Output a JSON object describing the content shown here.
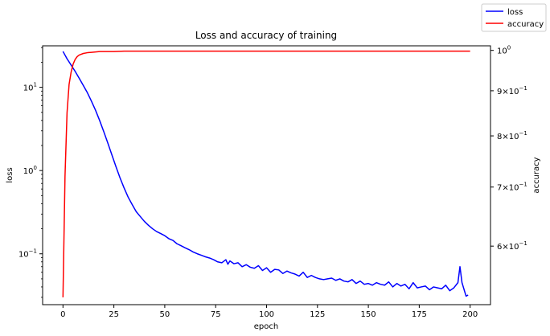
{
  "chart_data": {
    "type": "line",
    "title": "Loss and accuracy of training",
    "xlabel": "epoch",
    "ylabel_left": "loss",
    "ylabel_right": "accuracy",
    "xlim": [
      -10,
      210
    ],
    "x_ticks": [
      0,
      25,
      50,
      75,
      100,
      125,
      150,
      175,
      200
    ],
    "left_axis": {
      "scale": "log",
      "ylim": [
        0.0245,
        31.5
      ],
      "ticks": [
        {
          "value": 0.1,
          "base": "10",
          "exp": "−1"
        },
        {
          "value": 1,
          "base": "10",
          "exp": "0"
        },
        {
          "value": 10,
          "base": "10",
          "exp": "1"
        }
      ]
    },
    "right_axis": {
      "scale": "log",
      "ylim": [
        0.515,
        1.012
      ],
      "ticks": [
        {
          "value": 1.0,
          "mant": "",
          "base": "10",
          "exp": "0"
        },
        {
          "value": 0.9,
          "mant": "9×",
          "base": "10",
          "exp": "−1"
        },
        {
          "value": 0.8,
          "mant": "8×",
          "base": "10",
          "exp": "−1"
        },
        {
          "value": 0.7,
          "mant": "7×",
          "base": "10",
          "exp": "−1"
        },
        {
          "value": 0.6,
          "mant": "6×",
          "base": "10",
          "exp": "−1"
        }
      ]
    },
    "legend": {
      "placement": "top-right",
      "items": [
        {
          "name": "loss",
          "color": "#0000ff"
        },
        {
          "name": "accuracy",
          "color": "#ff0000"
        }
      ]
    },
    "series": [
      {
        "name": "loss",
        "axis": "left",
        "color": "#0000ff",
        "x": [
          0,
          2,
          4,
          6,
          8,
          10,
          12,
          14,
          16,
          18,
          20,
          22,
          24,
          26,
          28,
          30,
          32,
          34,
          36,
          38,
          40,
          42,
          44,
          46,
          48,
          50,
          52,
          54,
          56,
          58,
          60,
          62,
          64,
          66,
          68,
          70,
          72,
          74,
          76,
          78,
          80,
          81,
          82,
          84,
          86,
          88,
          90,
          92,
          94,
          96,
          98,
          100,
          102,
          104,
          106,
          108,
          110,
          112,
          114,
          116,
          118,
          120,
          122,
          124,
          126,
          128,
          130,
          132,
          134,
          136,
          138,
          140,
          142,
          144,
          146,
          148,
          150,
          152,
          154,
          156,
          158,
          160,
          162,
          164,
          166,
          168,
          170,
          172,
          174,
          176,
          178,
          180,
          182,
          184,
          186,
          188,
          190,
          192,
          194,
          195,
          196,
          198,
          199
        ],
        "values": [
          27,
          22,
          18.5,
          15.5,
          12.8,
          10.5,
          8.6,
          6.8,
          5.3,
          4.0,
          2.95,
          2.15,
          1.55,
          1.12,
          0.82,
          0.62,
          0.48,
          0.39,
          0.32,
          0.28,
          0.245,
          0.22,
          0.2,
          0.185,
          0.175,
          0.165,
          0.152,
          0.145,
          0.132,
          0.125,
          0.118,
          0.112,
          0.105,
          0.1,
          0.096,
          0.092,
          0.089,
          0.085,
          0.08,
          0.078,
          0.085,
          0.075,
          0.082,
          0.076,
          0.078,
          0.07,
          0.074,
          0.069,
          0.067,
          0.072,
          0.063,
          0.068,
          0.06,
          0.065,
          0.064,
          0.058,
          0.062,
          0.059,
          0.057,
          0.054,
          0.06,
          0.052,
          0.055,
          0.052,
          0.05,
          0.049,
          0.05,
          0.051,
          0.048,
          0.05,
          0.047,
          0.046,
          0.049,
          0.044,
          0.047,
          0.043,
          0.044,
          0.042,
          0.045,
          0.043,
          0.042,
          0.046,
          0.04,
          0.044,
          0.041,
          0.043,
          0.038,
          0.045,
          0.039,
          0.04,
          0.041,
          0.037,
          0.04,
          0.039,
          0.038,
          0.042,
          0.036,
          0.039,
          0.045,
          0.07,
          0.045,
          0.031,
          0.032
        ]
      },
      {
        "name": "accuracy",
        "axis": "right",
        "color": "#ff0000",
        "x": [
          0,
          1,
          2,
          3,
          4,
          5,
          6,
          7,
          8,
          10,
          12,
          14,
          16,
          18,
          20,
          25,
          30,
          40,
          50,
          60,
          75,
          100,
          125,
          150,
          175,
          200
        ],
        "values": [
          0.525,
          0.72,
          0.85,
          0.915,
          0.945,
          0.965,
          0.977,
          0.984,
          0.988,
          0.992,
          0.994,
          0.995,
          0.996,
          0.997,
          0.997,
          0.997,
          0.998,
          0.998,
          0.998,
          0.998,
          0.998,
          0.998,
          0.998,
          0.998,
          0.998,
          0.998
        ]
      }
    ]
  }
}
